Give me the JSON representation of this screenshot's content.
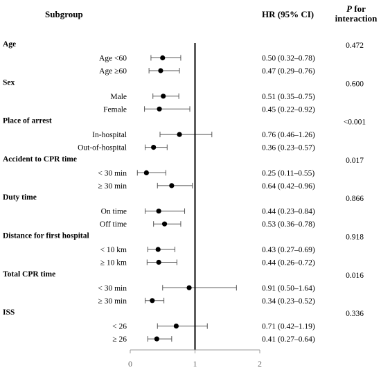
{
  "chart_data": {
    "type": "forest",
    "headers": {
      "subgroup": "Subgroup",
      "hr": "HR (95% CI)",
      "p_line1": "P",
      "p_line1_suffix": " for",
      "p_line2": "interaction"
    },
    "x_ticks": [
      "0",
      "1",
      "2"
    ],
    "xlim": [
      0,
      2
    ],
    "reference_line": 1,
    "groups": [
      {
        "name": "Age",
        "p": "0.472",
        "rows": [
          {
            "label": "Age <60",
            "hr": 0.5,
            "lo": 0.32,
            "hi": 0.78,
            "text": "0.50 (0.32–0.78)"
          },
          {
            "label": "Age ≥60",
            "hr": 0.47,
            "lo": 0.29,
            "hi": 0.76,
            "text": "0.47 (0.29–0.76)"
          }
        ]
      },
      {
        "name": "Sex",
        "p": "0.600",
        "rows": [
          {
            "label": "Male",
            "hr": 0.51,
            "lo": 0.35,
            "hi": 0.75,
            "text": "0.51 (0.35–0.75)"
          },
          {
            "label": "Female",
            "hr": 0.45,
            "lo": 0.22,
            "hi": 0.92,
            "text": "0.45 (0.22–0.92)"
          }
        ]
      },
      {
        "name": "Place of arrest",
        "p": "<0.001",
        "rows": [
          {
            "label": "In-hospital",
            "hr": 0.76,
            "lo": 0.46,
            "hi": 1.26,
            "text": "0.76 (0.46–1.26)"
          },
          {
            "label": "Out-of-hospital",
            "hr": 0.36,
            "lo": 0.23,
            "hi": 0.57,
            "text": "0.36 (0.23–0.57)"
          }
        ]
      },
      {
        "name": "Accident to CPR time",
        "p": "0.017",
        "rows": [
          {
            "label": "< 30 min",
            "hr": 0.25,
            "lo": 0.11,
            "hi": 0.55,
            "text": "0.25 (0.11–0.55)"
          },
          {
            "label": "≥ 30 min",
            "hr": 0.64,
            "lo": 0.42,
            "hi": 0.96,
            "text": "0.64 (0.42–0.96)"
          }
        ]
      },
      {
        "name": "Duty time",
        "p": "0.866",
        "rows": [
          {
            "label": "On time",
            "hr": 0.44,
            "lo": 0.23,
            "hi": 0.84,
            "text": "0.44 (0.23–0.84)"
          },
          {
            "label": "Off time",
            "hr": 0.53,
            "lo": 0.36,
            "hi": 0.78,
            "text": "0.53 (0.36–0.78)"
          }
        ]
      },
      {
        "name": "Distance for first hospital",
        "p": "0.918",
        "rows": [
          {
            "label": "< 10 km",
            "hr": 0.43,
            "lo": 0.27,
            "hi": 0.69,
            "text": "0.43 (0.27–0.69)"
          },
          {
            "label": "≥ 10 km",
            "hr": 0.44,
            "lo": 0.26,
            "hi": 0.72,
            "text": "0.44 (0.26–0.72)"
          }
        ]
      },
      {
        "name": "Total CPR time",
        "p": "0.016",
        "rows": [
          {
            "label": "< 30 min",
            "hr": 0.91,
            "lo": 0.5,
            "hi": 1.64,
            "text": "0.91 (0.50–1.64)"
          },
          {
            "label": "≥ 30 min",
            "hr": 0.34,
            "lo": 0.23,
            "hi": 0.52,
            "text": "0.34 (0.23–0.52)"
          }
        ]
      },
      {
        "name": "ISS",
        "p": "0.336",
        "rows": [
          {
            "label": "< 26",
            "hr": 0.71,
            "lo": 0.42,
            "hi": 1.19,
            "text": "0.71 (0.42–1.19)"
          },
          {
            "label": "≥ 26",
            "hr": 0.41,
            "lo": 0.27,
            "hi": 0.64,
            "text": "0.41 (0.27–0.64)"
          }
        ]
      }
    ]
  }
}
